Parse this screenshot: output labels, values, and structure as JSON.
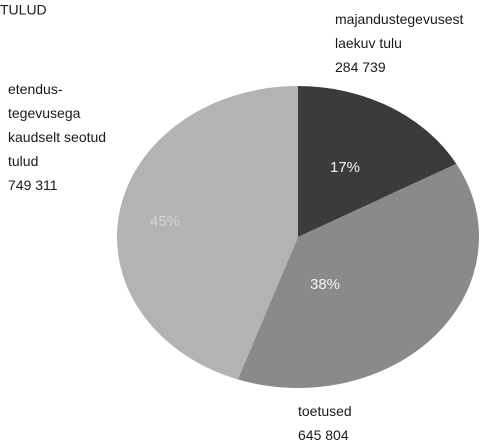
{
  "chart_data": {
    "type": "pie",
    "title": "TULUD",
    "categories": [
      [
        "majandustegevusest",
        "laekuv tulu"
      ],
      [
        "toetused"
      ],
      [
        "etendus-",
        "tegevusega",
        "kaudselt seotud",
        "tulud"
      ]
    ],
    "values": [
      284739,
      645804,
      749311
    ],
    "value_labels": [
      "284 739",
      "645 804",
      "749 311"
    ],
    "percent_labels": [
      "17%",
      "38%",
      "45%"
    ],
    "colors": [
      "#3b3b3b",
      "#8a8a8a",
      "#b3b3b3"
    ]
  }
}
